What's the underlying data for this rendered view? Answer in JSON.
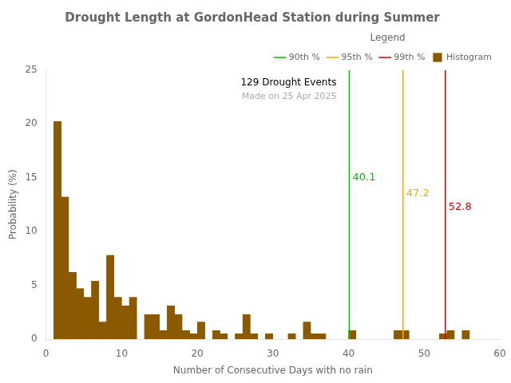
{
  "chart_data": {
    "type": "histogram",
    "title": "Drought Length at GordonHead Station during Summer",
    "xlabel": "Number of Consecutive Days with no rain",
    "ylabel": "Probability (%)",
    "xlim": [
      0,
      60
    ],
    "ylim": [
      0,
      25
    ],
    "xticks": [
      0,
      10,
      20,
      30,
      40,
      50,
      60
    ],
    "yticks": [
      0,
      5,
      10,
      15,
      20,
      25
    ],
    "grid": false,
    "legend": "upper right",
    "legend_title": "Legend",
    "bins": [
      0,
      1,
      2,
      3,
      4,
      5,
      6,
      7,
      8,
      9,
      10,
      11,
      12,
      13,
      14,
      15,
      16,
      17,
      18,
      19,
      20,
      21,
      22,
      23,
      24,
      25,
      26,
      27,
      28,
      29,
      30,
      31,
      32,
      33,
      34,
      35,
      36,
      37,
      38,
      39,
      40,
      41,
      42,
      43,
      44,
      45,
      46,
      47,
      48,
      49,
      50,
      51,
      52,
      53,
      54,
      55,
      56,
      57,
      58,
      59,
      60
    ],
    "series": [
      {
        "name": "90th %",
        "type": "vline",
        "color": "#00BB00",
        "x": 40.1,
        "data_labels": true
      },
      {
        "name": "95th %",
        "type": "vline",
        "color": "#FFA500",
        "x": 47.2,
        "data_labels": true
      },
      {
        "name": "99th %",
        "type": "vline",
        "color": "#CC0000",
        "x": 52.8,
        "data_labels": true
      },
      {
        "name": "Histogram",
        "type": "bar",
        "color": "#8B5A00",
        "values": [
          0.0,
          20.2,
          13.2,
          6.2,
          4.7,
          3.9,
          5.4,
          1.6,
          7.8,
          3.9,
          3.1,
          3.9,
          0.0,
          2.3,
          2.3,
          0.8,
          3.1,
          2.3,
          0.8,
          0.5,
          1.6,
          0.0,
          0.8,
          0.5,
          0.0,
          0.5,
          2.3,
          0.5,
          0.0,
          0.5,
          0.0,
          0.0,
          0.5,
          0.0,
          1.6,
          0.5,
          0.5,
          0.0,
          0.0,
          0.0,
          0.8,
          0.0,
          0.0,
          0.0,
          0.0,
          0.0,
          0.8,
          0.8,
          0.0,
          0.0,
          0.0,
          0.0,
          0.5,
          0.8,
          0.0,
          0.8,
          0.0,
          0.0,
          0.0,
          0.0
        ]
      }
    ],
    "annotations": [
      {
        "text": "129 Drought Events",
        "color": "#000000"
      },
      {
        "text": "Made on 25 Apr 2025",
        "color": "#AAAAAA"
      }
    ]
  }
}
